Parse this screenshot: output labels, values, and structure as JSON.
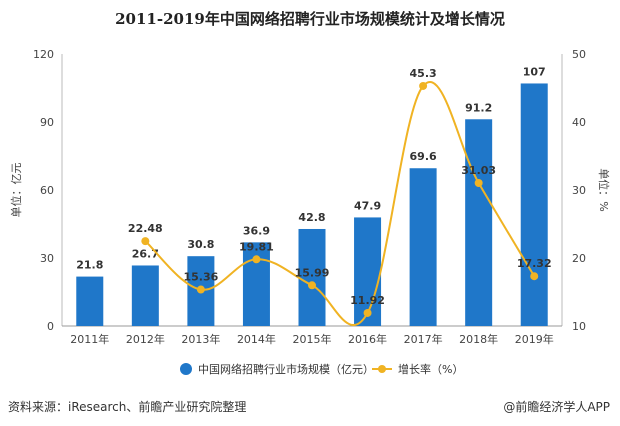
{
  "chart_data": {
    "type": "bar",
    "title": "2011-2019年中国网络招聘行业市场规模统计及增长情况",
    "categories": [
      "2011年",
      "2012年",
      "2013年",
      "2014年",
      "2015年",
      "2016年",
      "2017年",
      "2018年",
      "2019年"
    ],
    "series": [
      {
        "name": "中国网络招聘行业市场规模（亿元）",
        "type": "bar",
        "axis": "left",
        "values": [
          21.8,
          26.7,
          30.8,
          36.9,
          42.8,
          47.9,
          69.6,
          91.2,
          107
        ],
        "labels": [
          "21.8",
          "26.7",
          "30.8",
          "36.9",
          "42.8",
          "47.9",
          "69.6",
          "91.2",
          "107"
        ],
        "color": "#1f77c9"
      },
      {
        "name": "增长率（%）",
        "type": "line",
        "axis": "right",
        "values": [
          null,
          22.48,
          15.36,
          19.81,
          15.99,
          11.92,
          45.3,
          31.03,
          17.32
        ],
        "labels": [
          "",
          "22.48",
          "15.36",
          "19.81",
          "15.99",
          "11.92",
          "45.3",
          "31.03",
          "17.32"
        ],
        "color": "#f0b323"
      }
    ],
    "ylabel": "单位：亿元",
    "y2label": "单位：%",
    "ylim": [
      0,
      120
    ],
    "y2lim": [
      10,
      50
    ],
    "yticks": [
      "0",
      "30",
      "60",
      "90",
      "120"
    ],
    "y2ticks": [
      "10",
      "20",
      "30",
      "40",
      "50"
    ],
    "legend_position": "bottom",
    "grid": false
  },
  "footer": {
    "source": "资料来源：iResearch、前瞻产业研究院整理",
    "brand": "@前瞻经济学人APP"
  }
}
